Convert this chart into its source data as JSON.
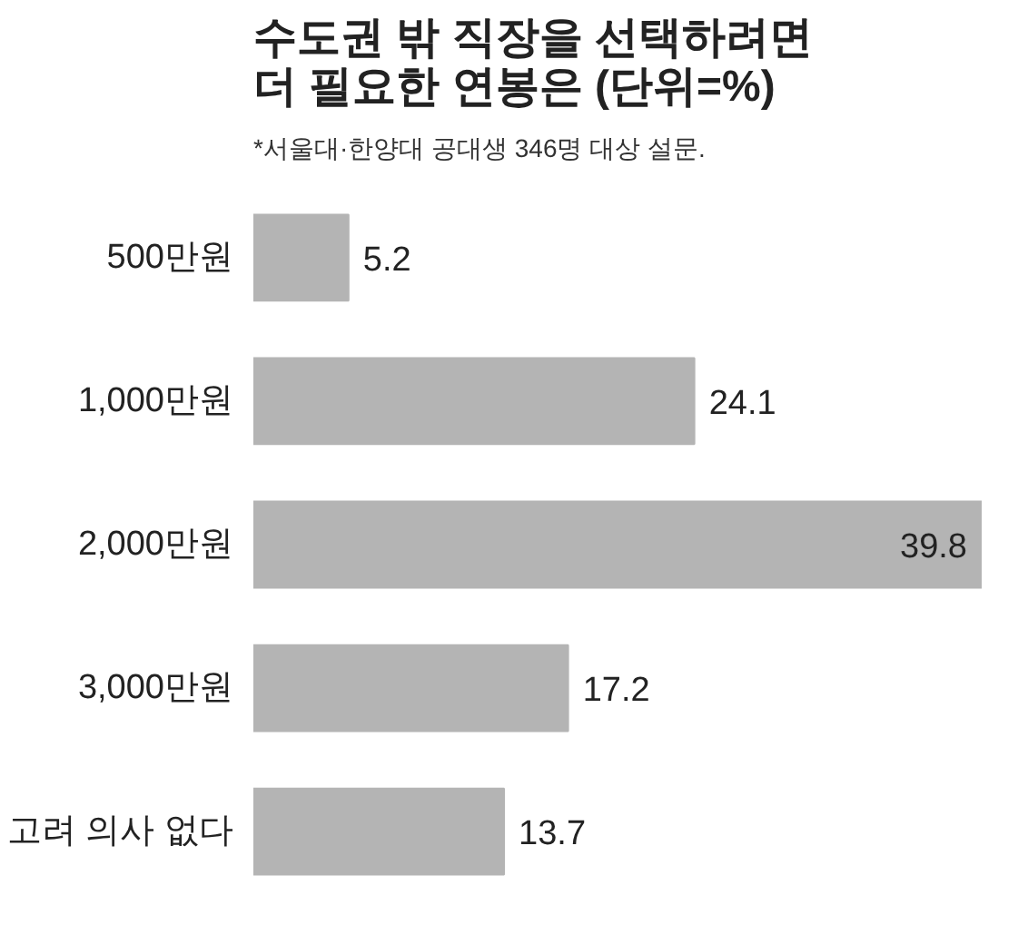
{
  "chart_data": {
    "type": "bar",
    "orientation": "horizontal",
    "title": "수도권 밖 직장을 선택하려면\n더 필요한 연봉은 (단위=%)",
    "subtitle": "*서울대·한양대 공대생 346명 대상 설문.",
    "categories": [
      "500만원",
      "1,000만원",
      "2,000만원",
      "3,000만원",
      "고려 의사 없다"
    ],
    "values": [
      5.2,
      24.1,
      39.8,
      17.2,
      13.7
    ],
    "color": "#b4b4b4",
    "data_labels": true,
    "grid": false
  }
}
